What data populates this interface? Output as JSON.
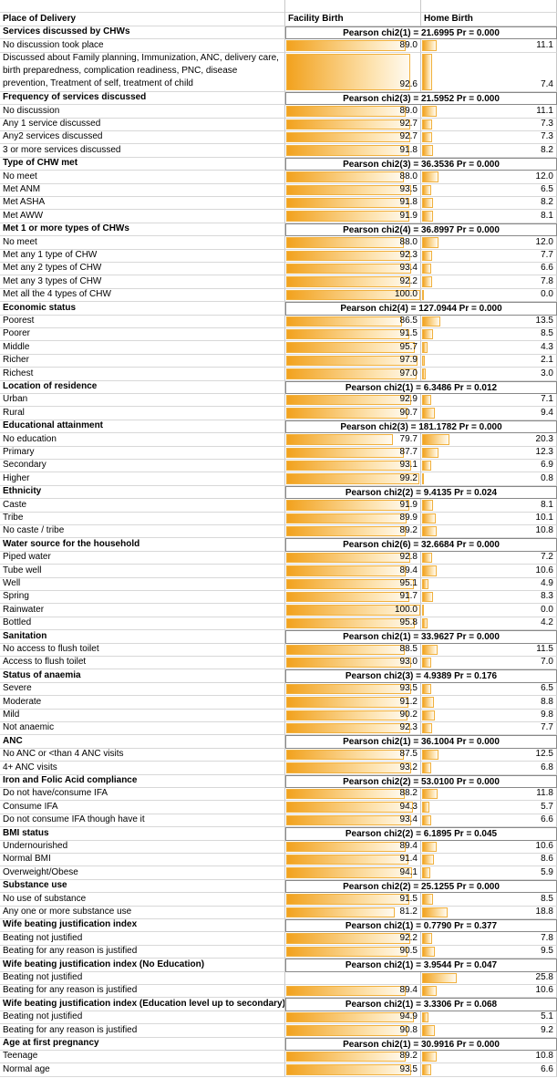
{
  "header": {
    "label": "Place of Delivery",
    "facility": "Facility Birth",
    "home": "Home Birth"
  },
  "sections": [
    {
      "title": "Services discussed by CHWs",
      "test": "Pearson chi2(1) = 21.6995  Pr = 0.000",
      "rows": [
        {
          "label": "No discussion took place",
          "facility": "89.0",
          "home": "11.1"
        },
        {
          "label": "Discussed about Family planning, Immunization, ANC, delivery care, birth preparedness, complication readiness, PNC, disease prevention, Treatment of self, treatment of child",
          "facility": "92.6",
          "home": "7.4"
        }
      ]
    },
    {
      "title": "Frequency of services discussed",
      "test": "Pearson chi2(3) = 21.5952  Pr = 0.000",
      "rows": [
        {
          "label": "No discussion",
          "facility": "89.0",
          "home": "11.1"
        },
        {
          "label": "Any 1 service discussed",
          "facility": "92.7",
          "home": "7.3"
        },
        {
          "label": "Any2 services discussed",
          "facility": "92.7",
          "home": "7.3"
        },
        {
          "label": "3 or more services discussed",
          "facility": "91.8",
          "home": "8.2"
        }
      ]
    },
    {
      "title": "Type of CHW met",
      "test": "Pearson chi2(3) = 36.3536  Pr = 0.000",
      "rows": [
        {
          "label": "No meet",
          "facility": "88.0",
          "home": "12.0"
        },
        {
          "label": "Met ANM",
          "facility": "93.5",
          "home": "6.5"
        },
        {
          "label": "Met ASHA",
          "facility": "91.8",
          "home": "8.2"
        },
        {
          "label": "Met AWW",
          "facility": "91.9",
          "home": "8.1"
        }
      ]
    },
    {
      "title": "Met 1 or more types of CHWs",
      "test": "Pearson chi2(4) = 36.8997  Pr = 0.000",
      "rows": [
        {
          "label": "No meet",
          "facility": "88.0",
          "home": "12.0"
        },
        {
          "label": "Met any 1 type of CHW",
          "facility": "92.3",
          "home": "7.7"
        },
        {
          "label": "Met any 2 types of CHW",
          "facility": "93.4",
          "home": "6.6"
        },
        {
          "label": "Met any 3 types of CHW",
          "facility": "92.2",
          "home": "7.8"
        },
        {
          "label": "Met all the 4 types of CHW",
          "facility": "100.0",
          "home": "0.0"
        }
      ]
    },
    {
      "title": "Economic status",
      "test": "Pearson chi2(4) = 127.0944  Pr = 0.000",
      "rows": [
        {
          "label": "Poorest",
          "facility": "86.5",
          "home": "13.5"
        },
        {
          "label": "Poorer",
          "facility": "91.5",
          "home": "8.5"
        },
        {
          "label": "Middle",
          "facility": "95.7",
          "home": "4.3"
        },
        {
          "label": "Richer",
          "facility": "97.9",
          "home": "2.1"
        },
        {
          "label": "Richest",
          "facility": "97.0",
          "home": "3.0"
        }
      ]
    },
    {
      "title": "Location of residence",
      "test": "Pearson chi2(1) =  6.3486  Pr = 0.012",
      "rows": [
        {
          "label": "Urban",
          "facility": "92.9",
          "home": "7.1"
        },
        {
          "label": "Rural",
          "facility": "90.7",
          "home": "9.4"
        }
      ]
    },
    {
      "title": "Educational attainment",
      "test": "Pearson chi2(3) = 181.1782  Pr = 0.000",
      "rows": [
        {
          "label": "No education",
          "facility": "79.7",
          "home": "20.3"
        },
        {
          "label": "Primary",
          "facility": "87.7",
          "home": "12.3"
        },
        {
          "label": "Secondary",
          "facility": "93.1",
          "home": "6.9"
        },
        {
          "label": "Higher",
          "facility": "99.2",
          "home": "0.8"
        }
      ]
    },
    {
      "title": "Ethnicity",
      "test": "Pearson chi2(2) =  9.4135  Pr = 0.024",
      "rows": [
        {
          "label": "Caste",
          "facility": "91.9",
          "home": "8.1"
        },
        {
          "label": "Tribe",
          "facility": "89.9",
          "home": "10.1"
        },
        {
          "label": "No caste / tribe",
          "facility": "89.2",
          "home": "10.8"
        }
      ]
    },
    {
      "title": "Water source for the household",
      "test": "Pearson chi2(6) = 32.6684  Pr = 0.000",
      "rows": [
        {
          "label": "Piped water",
          "facility": "92.8",
          "home": "7.2"
        },
        {
          "label": "Tube well",
          "facility": "89.4",
          "home": "10.6"
        },
        {
          "label": "Well",
          "facility": "95.1",
          "home": "4.9"
        },
        {
          "label": "Spring",
          "facility": "91.7",
          "home": "8.3"
        },
        {
          "label": "Rainwater",
          "facility": "100.0",
          "home": "0.0"
        },
        {
          "label": "Bottled",
          "facility": "95.8",
          "home": "4.2"
        }
      ]
    },
    {
      "title": "Sanitation",
      "test": "Pearson chi2(1) = 33.9627  Pr = 0.000",
      "rows": [
        {
          "label": "No access to flush toilet",
          "facility": "88.5",
          "home": "11.5"
        },
        {
          "label": "Access to flush toilet",
          "facility": "93.0",
          "home": "7.0"
        }
      ]
    },
    {
      "title": "Status of anaemia",
      "test": "Pearson chi2(3) =  4.9389  Pr = 0.176",
      "rows": [
        {
          "label": "Severe",
          "facility": "93.5",
          "home": "6.5"
        },
        {
          "label": "Moderate",
          "facility": "91.2",
          "home": "8.8"
        },
        {
          "label": "Mild",
          "facility": "90.2",
          "home": "9.8"
        },
        {
          "label": "Not anaemic",
          "facility": "92.3",
          "home": "7.7"
        }
      ]
    },
    {
      "title": "ANC",
      "test": "Pearson chi2(1) = 36.1004  Pr = 0.000",
      "rows": [
        {
          "label": "No ANC or <than 4 ANC visits",
          "facility": "87.5",
          "home": "12.5"
        },
        {
          "label": "4+ ANC visits",
          "facility": "93.2",
          "home": "6.8"
        }
      ]
    },
    {
      "title": "Iron and Folic Acid compliance",
      "test": "Pearson chi2(2) = 53.0100  Pr = 0.000",
      "rows": [
        {
          "label": "Do not have/consume IFA",
          "facility": "88.2",
          "home": "11.8"
        },
        {
          "label": "Consume IFA",
          "facility": "94.3",
          "home": "5.7"
        },
        {
          "label": "Do not consume IFA though have it",
          "facility": "93.4",
          "home": "6.6"
        }
      ]
    },
    {
      "title": "BMI status",
      "test": "Pearson chi2(2) =  6.1895  Pr = 0.045",
      "rows": [
        {
          "label": "Undernourished",
          "facility": "89.4",
          "home": "10.6"
        },
        {
          "label": "Normal BMI",
          "facility": "91.4",
          "home": "8.6"
        },
        {
          "label": "Overweight/Obese",
          "facility": "94.1",
          "home": "5.9"
        }
      ]
    },
    {
      "title": "Substance use",
      "test": "Pearson chi2(2) = 25.1255  Pr = 0.000",
      "rows": [
        {
          "label": "No use of substance",
          "facility": "91.5",
          "home": "8.5"
        },
        {
          "label": "Any one or more substance use",
          "facility": "81.2",
          "home": "18.8"
        }
      ]
    },
    {
      "title": "Wife beating justification index",
      "test": "Pearson chi2(1) =  0.7790  Pr = 0.377",
      "rows": [
        {
          "label": "Beating not justified",
          "facility": "92.2",
          "home": "7.8"
        },
        {
          "label": "Beating for any reason is justified",
          "facility": "90.5",
          "home": "9.5"
        }
      ]
    },
    {
      "title": "Wife beating justification index (No Education)",
      "test": "Pearson chi2(1) =  3.9544  Pr = 0.047",
      "rows": [
        {
          "label": "Beating not justified",
          "facility": null,
          "home": "25.8"
        },
        {
          "label": "Beating for any reason is justified",
          "facility": "89.4",
          "home": "10.6"
        }
      ]
    },
    {
      "title": "Wife beating justification index (Education level up to secondary)",
      "test": "Pearson chi2(1) =  3.3306  Pr = 0.068",
      "rows": [
        {
          "label": "Beating not justified",
          "facility": "94.9",
          "home": "5.1"
        },
        {
          "label": "Beating for any reason is justified",
          "facility": "90.8",
          "home": "9.2"
        }
      ]
    },
    {
      "title": "Age at first pregnancy",
      "test": "Pearson chi2(1) = 30.9916  Pr = 0.000",
      "rows": [
        {
          "label": "Teenage",
          "facility": "89.2",
          "home": "10.8"
        },
        {
          "label": "Normal age",
          "facility": "93.5",
          "home": "6.6"
        }
      ]
    }
  ]
}
